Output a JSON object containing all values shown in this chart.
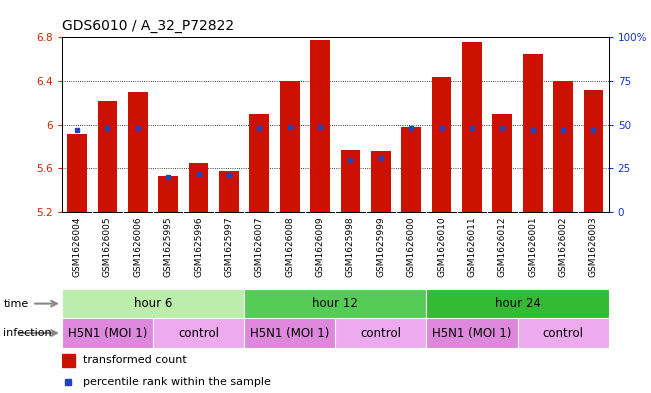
{
  "title": "GDS6010 / A_32_P72822",
  "samples": [
    "GSM1626004",
    "GSM1626005",
    "GSM1626006",
    "GSM1625995",
    "GSM1625996",
    "GSM1625997",
    "GSM1626007",
    "GSM1626008",
    "GSM1626009",
    "GSM1625998",
    "GSM1625999",
    "GSM1626000",
    "GSM1626010",
    "GSM1626011",
    "GSM1626012",
    "GSM1626001",
    "GSM1626002",
    "GSM1626003"
  ],
  "bar_values": [
    5.92,
    6.22,
    6.3,
    5.53,
    5.65,
    5.58,
    6.1,
    6.4,
    6.78,
    5.77,
    5.76,
    5.98,
    6.44,
    6.76,
    6.1,
    6.65,
    6.4,
    6.32
  ],
  "percentile_values": [
    47,
    48,
    48,
    20,
    22,
    21,
    48,
    49,
    49,
    30,
    31,
    48,
    48,
    48,
    48,
    47,
    47,
    47
  ],
  "ymin": 5.2,
  "ymax": 6.8,
  "yticks": [
    5.2,
    5.6,
    6.0,
    6.4,
    6.8
  ],
  "ytick_labels": [
    "5.2",
    "5.6",
    "6",
    "6.4",
    "6.8"
  ],
  "right_yticks": [
    0,
    25,
    50,
    75,
    100
  ],
  "right_ytick_labels": [
    "0",
    "25",
    "50",
    "75",
    "100%"
  ],
  "bar_color": "#cc1100",
  "dot_color": "#2244bb",
  "background_color": "#ffffff",
  "label_bg_color": "#cccccc",
  "time_groups": [
    {
      "label": "hour 6",
      "start": 0,
      "end": 6,
      "color": "#bbeeaa"
    },
    {
      "label": "hour 12",
      "start": 6,
      "end": 12,
      "color": "#55cc55"
    },
    {
      "label": "hour 24",
      "start": 12,
      "end": 18,
      "color": "#33bb33"
    }
  ],
  "infection_groups": [
    {
      "label": "H5N1 (MOI 1)",
      "start": 0,
      "end": 3,
      "color": "#dd88dd"
    },
    {
      "label": "control",
      "start": 3,
      "end": 6,
      "color": "#eeaaee"
    },
    {
      "label": "H5N1 (MOI 1)",
      "start": 6,
      "end": 9,
      "color": "#dd88dd"
    },
    {
      "label": "control",
      "start": 9,
      "end": 12,
      "color": "#eeaaee"
    },
    {
      "label": "H5N1 (MOI 1)",
      "start": 12,
      "end": 15,
      "color": "#dd88dd"
    },
    {
      "label": "control",
      "start": 15,
      "end": 18,
      "color": "#eeaaee"
    }
  ],
  "tick_fontsize": 7.5,
  "title_fontsize": 10,
  "sample_fontsize": 6.5,
  "group_fontsize": 8.5
}
